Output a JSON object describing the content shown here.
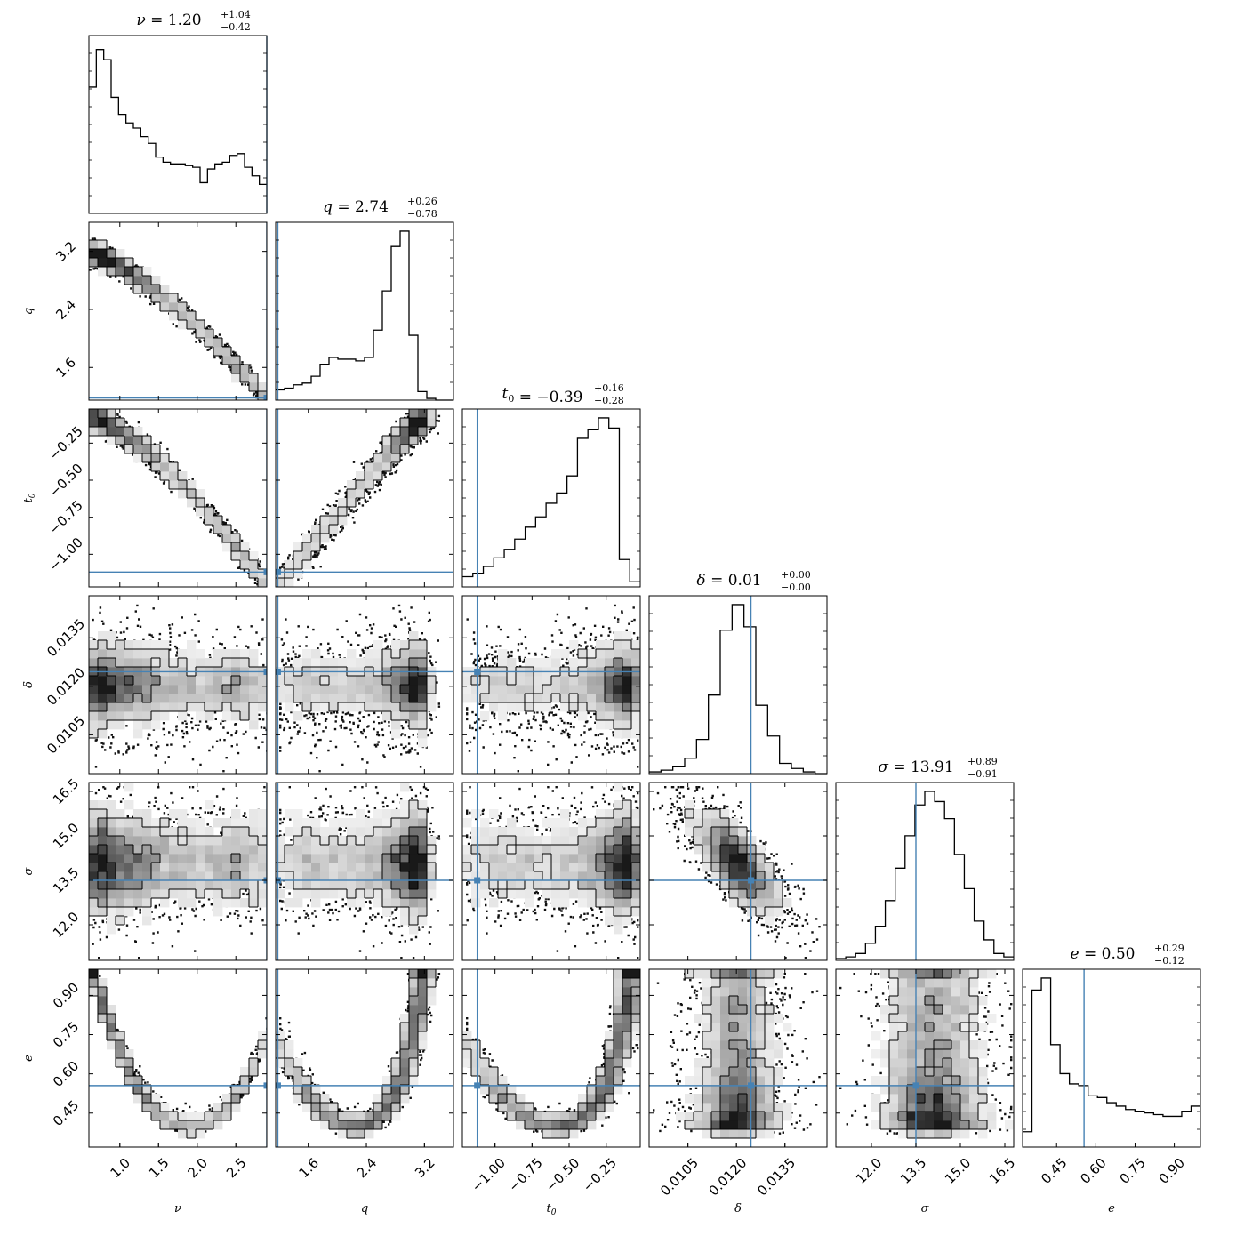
{
  "chart_data": {
    "type": "corner",
    "colors": {
      "truth": "#4682b4",
      "hist": "#000000",
      "frame": "#000000"
    },
    "params": [
      {
        "symbol": "ν",
        "subscript": "",
        "median": "1.20",
        "plus": "+1.04",
        "minus": "−0.42",
        "range": [
          0.6,
          2.9
        ],
        "ticks": [
          1.0,
          1.5,
          2.0,
          2.5
        ],
        "tick_labels": [
          "1.0",
          "1.5",
          "2.0",
          "2.5"
        ],
        "truth": 2.9,
        "hist": [
          0.74,
          0.96,
          0.9,
          0.68,
          0.58,
          0.53,
          0.5,
          0.45,
          0.41,
          0.33,
          0.3,
          0.29,
          0.29,
          0.28,
          0.27,
          0.18,
          0.26,
          0.29,
          0.3,
          0.34,
          0.35,
          0.27,
          0.22,
          0.17
        ]
      },
      {
        "symbol": "q",
        "subscript": "",
        "median": "2.74",
        "plus": "+0.26",
        "minus": "−0.78",
        "range": [
          1.15,
          3.6
        ],
        "ticks": [
          1.6,
          2.4,
          3.2
        ],
        "tick_labels": [
          "1.6",
          "2.4",
          "3.2"
        ],
        "truth": 1.18,
        "hist": [
          0.06,
          0.07,
          0.09,
          0.1,
          0.14,
          0.21,
          0.25,
          0.24,
          0.24,
          0.23,
          0.25,
          0.41,
          0.64,
          0.9,
          0.99,
          0.38,
          0.05,
          0.01,
          0.0,
          0.0
        ]
      },
      {
        "symbol": "t",
        "subscript": "0",
        "median": "−0.39",
        "plus": "+0.16",
        "minus": "−0.28",
        "range": [
          -1.22,
          -0.02
        ],
        "ticks": [
          -1.0,
          -0.75,
          -0.5,
          -0.25
        ],
        "tick_labels": [
          "−1.00",
          "−0.75",
          "−0.50",
          "−0.25"
        ],
        "truth": -1.12,
        "hist": [
          0.06,
          0.08,
          0.12,
          0.17,
          0.22,
          0.28,
          0.35,
          0.41,
          0.49,
          0.55,
          0.65,
          0.87,
          0.92,
          0.99,
          0.93,
          0.16,
          0.03
        ]
      },
      {
        "symbol": "δ",
        "subscript": "",
        "median": "0.01",
        "plus": "+0.00",
        "minus": "−0.00",
        "range": [
          0.0093,
          0.0148
        ],
        "ticks": [
          0.0105,
          0.012,
          0.0135
        ],
        "tick_labels": [
          "0.0105",
          "0.0120",
          "0.0135"
        ],
        "truth": 0.01245,
        "hist": [
          0.01,
          0.02,
          0.04,
          0.09,
          0.2,
          0.46,
          0.84,
          0.99,
          0.86,
          0.4,
          0.22,
          0.06,
          0.03,
          0.01,
          0.0
        ]
      },
      {
        "symbol": "σ",
        "subscript": "",
        "median": "13.91",
        "plus": "+0.89",
        "minus": "−0.91",
        "range": [
          10.8,
          16.8
        ],
        "ticks": [
          12.0,
          13.5,
          15.0,
          16.5
        ],
        "tick_labels": [
          "12.0",
          "13.5",
          "15.0",
          "16.5"
        ],
        "truth": 13.5,
        "hist": [
          0.01,
          0.02,
          0.04,
          0.1,
          0.2,
          0.35,
          0.54,
          0.73,
          0.91,
          0.99,
          0.93,
          0.83,
          0.62,
          0.42,
          0.23,
          0.12,
          0.04,
          0.02
        ]
      },
      {
        "symbol": "e",
        "subscript": "",
        "median": "0.50",
        "plus": "+0.29",
        "minus": "−0.12",
        "range": [
          0.32,
          1.0
        ],
        "ticks": [
          0.45,
          0.6,
          0.75,
          0.9
        ],
        "tick_labels": [
          "0.45",
          "0.60",
          "0.75",
          "0.90"
        ],
        "truth": 0.555,
        "hist": [
          0.09,
          0.92,
          0.99,
          0.6,
          0.43,
          0.37,
          0.36,
          0.3,
          0.29,
          0.26,
          0.24,
          0.22,
          0.21,
          0.2,
          0.19,
          0.18,
          0.18,
          0.21,
          0.24
        ]
      }
    ]
  }
}
